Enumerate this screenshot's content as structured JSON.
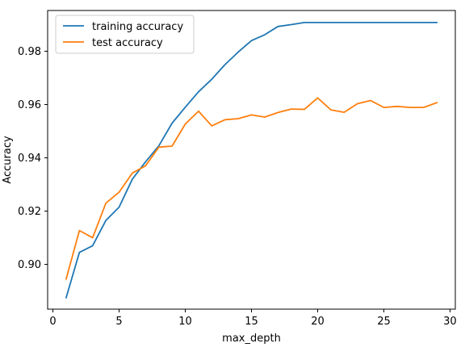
{
  "chart_data": {
    "type": "line",
    "title": "",
    "xlabel": "max_depth",
    "ylabel": "Accuracy",
    "xlim": [
      -0.4,
      30.4
    ],
    "ylim": [
      0.8832,
      0.9953
    ],
    "xticks": [
      0,
      5,
      10,
      15,
      20,
      25,
      30
    ],
    "xtick_labels": [
      "0",
      "5",
      "10",
      "15",
      "20",
      "25",
      "30"
    ],
    "yticks": [
      0.9,
      0.92,
      0.94,
      0.96,
      0.98
    ],
    "ytick_labels": [
      "0.90",
      "0.92",
      "0.94",
      "0.96",
      "0.98"
    ],
    "grid": false,
    "legend_position": "top-left",
    "x": [
      1,
      2,
      3,
      4,
      5,
      6,
      7,
      8,
      9,
      10,
      11,
      12,
      13,
      14,
      15,
      16,
      17,
      18,
      19,
      20,
      21,
      22,
      23,
      24,
      25,
      26,
      27,
      28,
      29
    ],
    "series": [
      {
        "name": "training accuracy",
        "color": "#1f77b4",
        "values": [
          0.8875,
          0.9045,
          0.907,
          0.9165,
          0.9215,
          0.932,
          0.9385,
          0.9445,
          0.953,
          0.959,
          0.9648,
          0.9695,
          0.975,
          0.9797,
          0.984,
          0.9862,
          0.9893,
          0.99,
          0.9908,
          0.9908,
          0.9908,
          0.9908,
          0.9908,
          0.9908,
          0.9908,
          0.9908,
          0.9908,
          0.9908,
          0.9908
        ]
      },
      {
        "name": "test accuracy",
        "color": "#ff7f0e",
        "values": [
          0.8945,
          0.9127,
          0.91,
          0.923,
          0.9271,
          0.9343,
          0.937,
          0.944,
          0.9444,
          0.9527,
          0.9575,
          0.952,
          0.9543,
          0.9547,
          0.9561,
          0.9553,
          0.957,
          0.9583,
          0.9582,
          0.9625,
          0.958,
          0.9571,
          0.9603,
          0.9615,
          0.9589,
          0.9593,
          0.9589,
          0.9589,
          0.9607
        ]
      }
    ]
  }
}
